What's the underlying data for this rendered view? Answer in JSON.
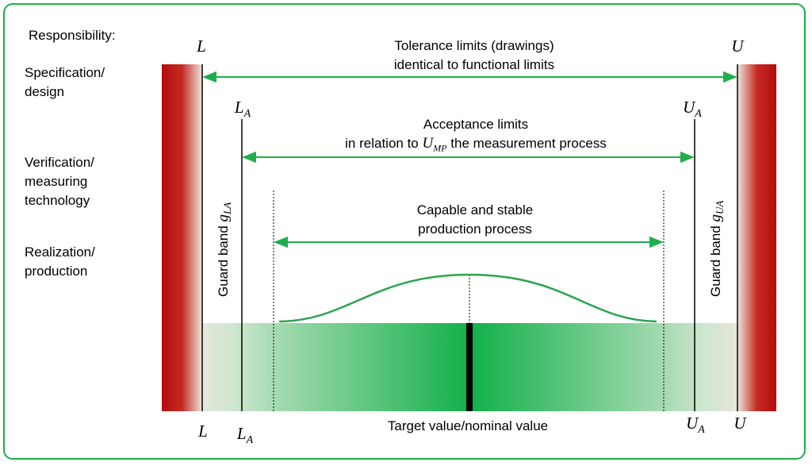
{
  "responsibility_label": "Responsibility:",
  "roles": {
    "specification": "Specification/ design",
    "verification": "Verification/ measuring technology",
    "realization": "Realization/ production"
  },
  "limits": {
    "lower": "L",
    "upper": "U",
    "lower_acceptance": "L",
    "lower_acceptance_sub": "A",
    "upper_acceptance": "U",
    "upper_acceptance_sub": "A"
  },
  "tolerance": {
    "line1": "Tolerance limits (drawings)",
    "line2": "identical to functional limits"
  },
  "acceptance": {
    "line1": "Acceptance limits",
    "line2_pre": "in relation to",
    "line2_var": "U",
    "line2_var_sub": "MP",
    "line2_post": "the measurement process"
  },
  "process": {
    "line1": "Capable and stable",
    "line2": "production process"
  },
  "guard_band_lower": {
    "text": "Guard band",
    "var": "g",
    "sub": "LA"
  },
  "guard_band_upper": {
    "text": "Guard band",
    "var": "g",
    "sub": "UA"
  },
  "target_label": "Target value/nominal value",
  "colors": {
    "accent": "#1fae4b",
    "reject": "#b50d0d",
    "band": "#18b04a"
  }
}
